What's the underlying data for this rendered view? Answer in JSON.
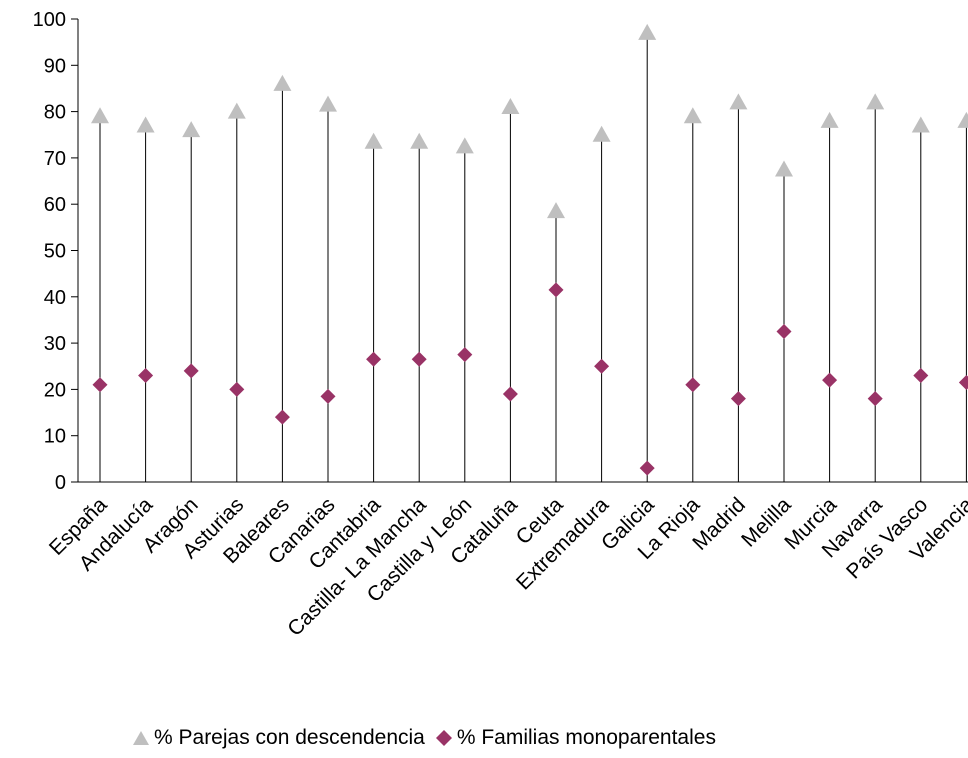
{
  "chart_data": {
    "type": "scatter",
    "categories": [
      "España",
      "Andalucía",
      "Aragón",
      "Asturias",
      "Baleares",
      "Canarias",
      "Cantabria",
      "Castilla- La Mancha",
      "Castilla y León",
      "Cataluña",
      "Ceuta",
      "Extremadura",
      "Galicia",
      "La Rioja",
      "Madrid",
      "Melilla",
      "Murcia",
      "Navarra",
      "País Vasco",
      "Valencia"
    ],
    "series": [
      {
        "name": "% Parejas con descendencia",
        "marker": "triangle",
        "color": "#bfbfbf",
        "values": [
          79,
          77,
          76,
          80,
          86,
          81.5,
          73.5,
          73.5,
          72.5,
          81,
          58.5,
          75,
          97,
          79,
          82,
          67.5,
          78,
          82,
          77,
          78
        ]
      },
      {
        "name": "% Familias monoparentales",
        "marker": "diamond",
        "color": "#993366",
        "values": [
          21,
          23,
          24,
          20,
          14,
          18.5,
          26.5,
          26.5,
          27.5,
          19,
          41.5,
          25,
          3,
          21,
          18,
          32.5,
          22,
          18,
          23,
          21.5
        ]
      }
    ],
    "y_ticks": [
      "0",
      "10",
      "20",
      "30",
      "40",
      "50",
      "60",
      "70",
      "80",
      "90",
      "100"
    ],
    "ylim": [
      0,
      100
    ],
    "drop_lines": true,
    "grid": false,
    "legend_position": "bottom"
  }
}
